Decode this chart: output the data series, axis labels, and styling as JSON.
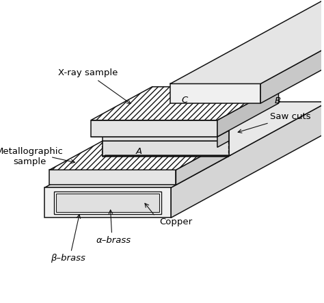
{
  "background_color": "#ffffff",
  "line_color": "#111111",
  "labels": {
    "xray_sample": "X-ray sample",
    "metallo_sample": "Metallographic\nsample",
    "saw_cuts": "Saw cuts",
    "copper": "Copper",
    "alpha_brass": "α–brass",
    "beta_brass": "β–brass",
    "A": "A",
    "B": "B",
    "C": "C"
  },
  "fig_width": 4.74,
  "fig_height": 4.43,
  "dpi": 100
}
